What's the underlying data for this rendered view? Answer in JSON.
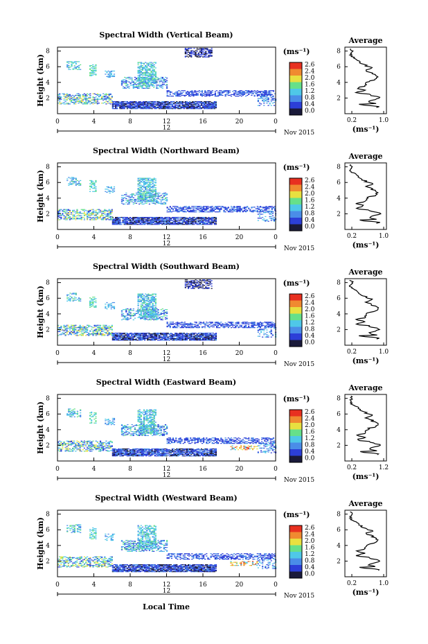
{
  "chart_data": [
    {
      "type": "heatmap",
      "title": "Spectral Width (Vertical Beam)",
      "ylabel": "Height (km)",
      "y_ticks": [
        "2",
        "4",
        "6",
        "8"
      ],
      "x_ticks": [
        "0",
        "4",
        "8",
        "12",
        "16",
        "20",
        "0"
      ],
      "date_label": "12",
      "month_label": "Nov 2015",
      "colorbar": {
        "unit_label": "(ms⁻¹)",
        "ticks": [
          "2.6",
          "2.4",
          "2.0",
          "1.6",
          "1.2",
          "0.8",
          "0.4",
          "0.0"
        ]
      },
      "average": {
        "title": "Average",
        "x_ticks": [
          "0.2",
          "1.0"
        ],
        "y_ticks": [
          "2",
          "4",
          "6",
          "8"
        ],
        "xlabel": "(ms⁻¹)"
      }
    },
    {
      "type": "heatmap",
      "title": "Spectral Width (Northward Beam)",
      "ylabel": "Height (km)",
      "y_ticks": [
        "2",
        "4",
        "6",
        "8"
      ],
      "x_ticks": [
        "0",
        "4",
        "8",
        "12",
        "16",
        "20",
        "0"
      ],
      "date_label": "12",
      "month_label": "Nov 2015",
      "colorbar": {
        "unit_label": "(ms⁻¹)",
        "ticks": [
          "2.6",
          "2.4",
          "2.0",
          "1.6",
          "1.2",
          "0.8",
          "0.4",
          "0.0"
        ]
      },
      "average": {
        "title": "Average",
        "x_ticks": [
          "0.2",
          "1.0"
        ],
        "y_ticks": [
          "2",
          "4",
          "6",
          "8"
        ],
        "xlabel": "(ms⁻¹)"
      }
    },
    {
      "type": "heatmap",
      "title": "Spectral Width (Southward Beam)",
      "ylabel": "Height (km)",
      "y_ticks": [
        "2",
        "4",
        "6",
        "8"
      ],
      "x_ticks": [
        "0",
        "4",
        "8",
        "12",
        "16",
        "20",
        "0"
      ],
      "date_label": "12",
      "month_label": "Nov 2015",
      "colorbar": {
        "unit_label": "(ms⁻¹)",
        "ticks": [
          "2.6",
          "2.4",
          "2.0",
          "1.6",
          "1.2",
          "0.8",
          "0.4",
          "0.0"
        ]
      },
      "average": {
        "title": "Average",
        "x_ticks": [
          "0.2",
          "1.0"
        ],
        "y_ticks": [
          "2",
          "4",
          "6",
          "8"
        ],
        "xlabel": "(ms⁻¹)"
      }
    },
    {
      "type": "heatmap",
      "title": "Spectral Width (Eastward Beam)",
      "ylabel": "Height (km)",
      "y_ticks": [
        "2",
        "4",
        "6",
        "8"
      ],
      "x_ticks": [
        "0",
        "4",
        "8",
        "12",
        "16",
        "20",
        "0"
      ],
      "date_label": "12",
      "month_label": "Nov 2015",
      "colorbar": {
        "unit_label": "(ms⁻¹)",
        "ticks": [
          "2.6",
          "2.4",
          "2.0",
          "1.6",
          "1.2",
          "0.8",
          "0.4",
          "0.0"
        ]
      },
      "average": {
        "title": "Average",
        "x_ticks": [
          "0.2",
          "1.2"
        ],
        "y_ticks": [
          "2",
          "4",
          "6",
          "8"
        ],
        "xlabel": "(ms⁻¹)"
      }
    },
    {
      "type": "heatmap",
      "title": "Spectral Width (Westward Beam)",
      "ylabel": "Height (km)",
      "y_ticks": [
        "2",
        "4",
        "6",
        "8"
      ],
      "x_ticks": [
        "0",
        "4",
        "8",
        "12",
        "16",
        "20",
        "0"
      ],
      "date_label": "12",
      "month_label": "Nov 2015",
      "colorbar": {
        "unit_label": "(ms⁻¹)",
        "ticks": [
          "2.6",
          "2.4",
          "2.0",
          "1.6",
          "1.2",
          "0.8",
          "0.4",
          "0.0"
        ]
      },
      "average": {
        "title": "Average",
        "x_ticks": [
          "0.2",
          "1.0"
        ],
        "y_ticks": [
          "2",
          "4",
          "6",
          "8"
        ],
        "xlabel": "(ms⁻¹)"
      }
    }
  ],
  "footer": {
    "xlabel": "Local Time"
  },
  "colors": {
    "dark": "#1a1a3a",
    "blue": "#2c3fd8",
    "mid_blue": "#4a8de8",
    "cyan": "#4fc8e8",
    "green": "#66e08a",
    "yellow": "#e8e040",
    "orange": "#f08a30",
    "red": "#e83020"
  }
}
